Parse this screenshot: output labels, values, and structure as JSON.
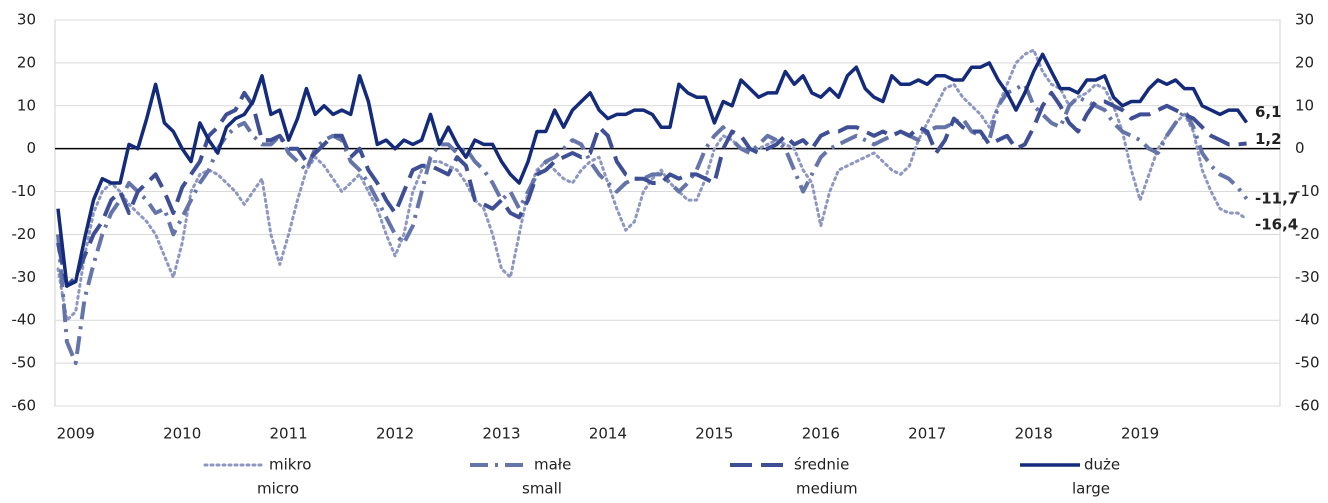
{
  "chart_data": {
    "type": "line",
    "categories": [
      null,
      null,
      "2009",
      null,
      null,
      null,
      null,
      null,
      null,
      null,
      null,
      null,
      null,
      null,
      "2010",
      null,
      null,
      null,
      null,
      null,
      null,
      null,
      null,
      null,
      null,
      null,
      "2011",
      null,
      null,
      null,
      null,
      null,
      null,
      null,
      null,
      null,
      null,
      null,
      "2012",
      null,
      null,
      null,
      null,
      null,
      null,
      null,
      null,
      null,
      null,
      null,
      "2013",
      null,
      null,
      null,
      null,
      null,
      null,
      null,
      null,
      null,
      null,
      null,
      "2014",
      null,
      null,
      null,
      null,
      null,
      null,
      null,
      null,
      null,
      null,
      null,
      "2015",
      null,
      null,
      null,
      null,
      null,
      null,
      null,
      null,
      null,
      null,
      null,
      "2016",
      null,
      null,
      null,
      null,
      null,
      null,
      null,
      null,
      null,
      null,
      null,
      "2017",
      null,
      null,
      null,
      null,
      null,
      null,
      null,
      null,
      null,
      null,
      null,
      "2018",
      null,
      null,
      null,
      null,
      null,
      null,
      null,
      null,
      null,
      null,
      null,
      "2019",
      null,
      null,
      null,
      null,
      null,
      null,
      null,
      null,
      null,
      null,
      null,
      null
    ],
    "series": [
      {
        "name": "mikro",
        "name_en": "micro",
        "color": "#8d97c2",
        "style": "dotted",
        "end_label": "-16,4",
        "values": [
          -28,
          -40,
          -38,
          -25,
          -15,
          -10,
          -8,
          -10,
          -13,
          -15,
          -17,
          -20,
          -25,
          -30,
          -22,
          -10,
          -6,
          -5,
          -6,
          -8,
          -10,
          -13,
          -10,
          -7,
          -20,
          -27,
          -20,
          -12,
          -5,
          -2,
          -4,
          -7,
          -10,
          -8,
          -6,
          -10,
          -14,
          -20,
          -25,
          -20,
          -10,
          -5,
          -3,
          -3,
          -4,
          -5,
          -8,
          -12,
          -14,
          -20,
          -28,
          -30,
          -20,
          -10,
          -5,
          -3,
          -5,
          -7,
          -8,
          -5,
          -3,
          -2,
          -8,
          -14,
          -19,
          -17,
          -10,
          -7,
          -5,
          -8,
          -10,
          -12,
          -12,
          -7,
          0,
          3,
          2,
          0,
          0,
          0,
          1,
          2,
          1,
          0,
          -5,
          -8,
          -18,
          -10,
          -5,
          -4,
          -3,
          -2,
          -1,
          -3,
          -5,
          -6,
          -4,
          2,
          6,
          10,
          14,
          15,
          12,
          10,
          8,
          5,
          10,
          15,
          20,
          22,
          23,
          18,
          15,
          14,
          10,
          12,
          13,
          15,
          14,
          10,
          4,
          -5,
          -12,
          -6,
          0,
          3,
          6,
          8,
          4,
          -5,
          -10,
          -14,
          -15,
          -15,
          -16.4
        ]
      },
      {
        "name": "małe",
        "name_en": "small",
        "color": "#6675a9",
        "style": "dashdot",
        "end_label": "-11,7",
        "values": [
          -20,
          -45,
          -50,
          -35,
          -27,
          -20,
          -15,
          -12,
          -8,
          -10,
          -12,
          -15,
          -14,
          -20,
          -16,
          -12,
          -8,
          -5,
          0,
          3,
          5,
          6,
          3,
          1,
          1,
          3,
          -1,
          -3,
          -5,
          0,
          2,
          3,
          2,
          -3,
          -5,
          -8,
          -12,
          -16,
          -20,
          -22,
          -18,
          -10,
          -2,
          1,
          1,
          -1,
          0,
          -3,
          -5,
          -8,
          -12,
          -10,
          -14,
          -10,
          -6,
          -3,
          -2,
          0,
          2,
          1,
          -3,
          -6,
          -8,
          -10,
          -8,
          -7,
          -7,
          -6,
          -6,
          -8,
          -10,
          -8,
          -5,
          0,
          3,
          5,
          2,
          0,
          -1,
          1,
          3,
          2,
          0,
          -5,
          -10,
          -6,
          -2,
          0,
          1,
          2,
          3,
          2,
          1,
          2,
          3,
          4,
          3,
          2,
          4,
          5,
          5,
          6,
          7,
          4,
          3,
          2,
          10,
          13,
          14,
          15,
          10,
          8,
          6,
          5,
          10,
          12,
          11,
          10,
          9,
          6,
          4,
          3,
          2,
          0,
          -1,
          3,
          6,
          9,
          5,
          -1,
          -4,
          -6,
          -7,
          -9,
          -11.7
        ]
      },
      {
        "name": "średnie",
        "name_en": "medium",
        "color": "#3f4f96",
        "style": "dashed",
        "end_label": "1,2",
        "values": [
          -22,
          -32,
          -30,
          -25,
          -20,
          -17,
          -12,
          -10,
          -15,
          -10,
          -8,
          -6,
          -10,
          -15,
          -9,
          -6,
          -3,
          3,
          5,
          8,
          9,
          13,
          10,
          2,
          2,
          3,
          0,
          0,
          -3,
          -1,
          1,
          3,
          3,
          -2,
          0,
          -5,
          -8,
          -12,
          -15,
          -10,
          -5,
          -4,
          -4,
          -5,
          -6,
          -2,
          -4,
          -12,
          -13,
          -14,
          -12,
          -15,
          -16,
          -12,
          -6,
          -5,
          -3,
          -2,
          -1,
          -2,
          -1,
          5,
          3,
          -3,
          -6,
          -7,
          -7,
          -8,
          -8,
          -6,
          -7,
          -6,
          -6,
          -7,
          -8,
          0,
          4,
          3,
          0,
          -1,
          0,
          1,
          3,
          1,
          2,
          0,
          3,
          4,
          4,
          5,
          5,
          4,
          3,
          4,
          3,
          4,
          3,
          5,
          4,
          -1,
          2,
          7,
          5,
          4,
          4,
          1,
          2,
          3,
          0,
          1,
          5,
          10,
          13,
          10,
          6,
          4,
          8,
          11,
          11,
          10,
          9,
          7,
          8,
          8,
          9,
          10,
          9,
          8,
          7,
          5,
          3,
          2,
          1,
          1,
          1.2
        ]
      },
      {
        "name": "duże",
        "name_en": "large",
        "color": "#142a7a",
        "style": "solid",
        "end_label": "6,1",
        "values": [
          -14,
          -32,
          -31,
          -21,
          -12,
          -7,
          -8,
          -8,
          1,
          0,
          7,
          15,
          6,
          4,
          0,
          -3,
          6,
          2,
          -1,
          5,
          7,
          8,
          11,
          17,
          8,
          9,
          2,
          7,
          14,
          8,
          10,
          8,
          9,
          8,
          17,
          11,
          1,
          2,
          0,
          2,
          1,
          2,
          8,
          1,
          5,
          1,
          -2,
          2,
          1,
          1,
          -3,
          -6,
          -8,
          -3,
          4,
          4,
          9,
          5,
          9,
          11,
          13,
          9,
          7,
          8,
          8,
          9,
          9,
          8,
          5,
          5,
          15,
          13,
          12,
          12,
          6,
          11,
          10,
          16,
          14,
          12,
          13,
          13,
          18,
          15,
          17,
          13,
          12,
          14,
          12,
          17,
          19,
          14,
          12,
          11,
          17,
          15,
          15,
          16,
          15,
          17,
          17,
          16,
          16,
          19,
          19,
          20,
          16,
          13,
          9,
          13,
          18,
          22,
          18,
          14,
          14,
          13,
          16,
          16,
          17,
          12,
          10,
          11,
          11,
          14,
          16,
          15,
          16,
          14,
          14,
          10,
          9,
          8,
          9,
          9,
          6.1
        ]
      }
    ],
    "ylim": [
      -60,
      30
    ],
    "yticks": [
      -60,
      -50,
      -40,
      -30,
      -20,
      -10,
      0,
      10,
      20,
      30
    ],
    "y2lim": [
      -60,
      30
    ],
    "y2ticks": [
      -60,
      -50,
      -40,
      -30,
      -20,
      -10,
      0,
      10,
      20,
      30
    ],
    "grid": true,
    "legend": "bottom"
  }
}
